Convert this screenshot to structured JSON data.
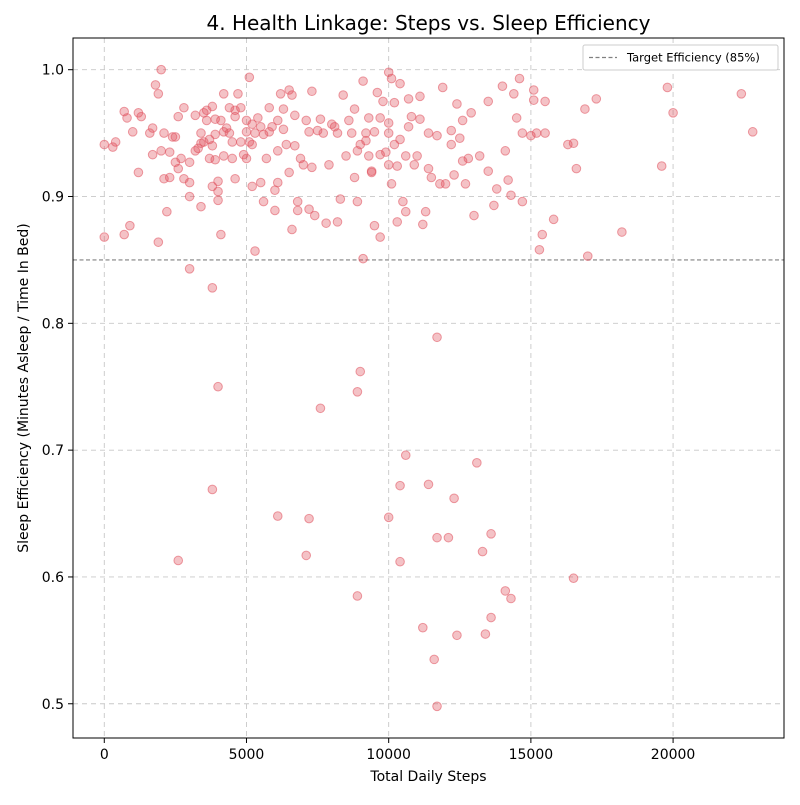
{
  "chart_data": {
    "type": "scatter",
    "title": "4. Health Linkage: Steps vs. Sleep Efficiency",
    "xlabel": "Total Daily Steps",
    "ylabel": "Sleep Efficiency (Minutes Asleep / Time In Bed)",
    "xlim": [
      -1100,
      23900
    ],
    "ylim": [
      0.473,
      1.025
    ],
    "x_ticks": [
      0,
      5000,
      10000,
      15000,
      20000
    ],
    "x_tick_labels": [
      "0",
      "5000",
      "10000",
      "15000",
      "20000"
    ],
    "y_ticks": [
      0.5,
      0.6,
      0.7,
      0.8,
      0.9,
      1.0
    ],
    "y_tick_labels": [
      "0.5",
      "0.6",
      "0.7",
      "0.8",
      "0.9",
      "1.0"
    ],
    "grid": true,
    "legend": {
      "placement": "top-right",
      "entries": [
        {
          "label": "Target Efficiency (85%)",
          "style": "dashed-line",
          "color": "#808080"
        }
      ]
    },
    "reference_line": {
      "y": 0.85,
      "label": "Target Efficiency (85%)",
      "color": "#808080",
      "style": "dashed"
    },
    "point_color": "#e0505c",
    "series": [
      {
        "points": [
          [
            0,
            0.941
          ],
          [
            0,
            0.868
          ],
          [
            300,
            0.939
          ],
          [
            400,
            0.943
          ],
          [
            700,
            0.967
          ],
          [
            700,
            0.87
          ],
          [
            800,
            0.962
          ],
          [
            900,
            0.877
          ],
          [
            1000,
            0.951
          ],
          [
            1200,
            0.919
          ],
          [
            1200,
            0.966
          ],
          [
            1300,
            0.963
          ],
          [
            1600,
            0.95
          ],
          [
            1700,
            0.954
          ],
          [
            1700,
            0.933
          ],
          [
            1800,
            0.988
          ],
          [
            1900,
            0.981
          ],
          [
            1900,
            0.864
          ],
          [
            2000,
            1.0
          ],
          [
            2000,
            0.936
          ],
          [
            2100,
            0.95
          ],
          [
            2100,
            0.914
          ],
          [
            2200,
            0.888
          ],
          [
            2300,
            0.935
          ],
          [
            2300,
            0.915
          ],
          [
            2400,
            0.947
          ],
          [
            2500,
            0.947
          ],
          [
            2500,
            0.927
          ],
          [
            2600,
            0.963
          ],
          [
            2600,
            0.922
          ],
          [
            2600,
            0.613
          ],
          [
            2700,
            0.93
          ],
          [
            2800,
            0.97
          ],
          [
            2800,
            0.914
          ],
          [
            3000,
            0.927
          ],
          [
            3000,
            0.911
          ],
          [
            3000,
            0.9
          ],
          [
            3000,
            0.843
          ],
          [
            3200,
            0.964
          ],
          [
            3200,
            0.936
          ],
          [
            3300,
            0.938
          ],
          [
            3400,
            0.95
          ],
          [
            3400,
            0.942
          ],
          [
            3400,
            0.892
          ],
          [
            3500,
            0.966
          ],
          [
            3500,
            0.943
          ],
          [
            3600,
            0.968
          ],
          [
            3600,
            0.96
          ],
          [
            3700,
            0.945
          ],
          [
            3700,
            0.93
          ],
          [
            3800,
            0.971
          ],
          [
            3800,
            0.908
          ],
          [
            3800,
            0.94
          ],
          [
            3800,
            0.828
          ],
          [
            3800,
            0.669
          ],
          [
            3900,
            0.961
          ],
          [
            3900,
            0.949
          ],
          [
            3900,
            0.929
          ],
          [
            4000,
            0.912
          ],
          [
            4000,
            0.897
          ],
          [
            4000,
            0.904
          ],
          [
            4000,
            0.75
          ],
          [
            4100,
            0.96
          ],
          [
            4100,
            0.87
          ],
          [
            4200,
            0.981
          ],
          [
            4200,
            0.951
          ],
          [
            4200,
            0.932
          ],
          [
            4300,
            0.954
          ],
          [
            4400,
            0.97
          ],
          [
            4400,
            0.95
          ],
          [
            4500,
            0.943
          ],
          [
            4500,
            0.93
          ],
          [
            4600,
            0.968
          ],
          [
            4600,
            0.963
          ],
          [
            4600,
            0.914
          ],
          [
            4700,
            0.981
          ],
          [
            4800,
            0.97
          ],
          [
            4800,
            0.943
          ],
          [
            4900,
            0.933
          ],
          [
            5000,
            0.96
          ],
          [
            5000,
            0.951
          ],
          [
            5000,
            0.93
          ],
          [
            5100,
            0.994
          ],
          [
            5100,
            0.943
          ],
          [
            5200,
            0.957
          ],
          [
            5200,
            0.941
          ],
          [
            5200,
            0.908
          ],
          [
            5300,
            0.95
          ],
          [
            5300,
            0.857
          ],
          [
            5400,
            0.962
          ],
          [
            5500,
            0.955
          ],
          [
            5500,
            0.911
          ],
          [
            5600,
            0.949
          ],
          [
            5600,
            0.896
          ],
          [
            5700,
            0.93
          ],
          [
            5800,
            0.97
          ],
          [
            5800,
            0.951
          ],
          [
            5900,
            0.955
          ],
          [
            6000,
            0.905
          ],
          [
            6000,
            0.889
          ],
          [
            6100,
            0.96
          ],
          [
            6100,
            0.936
          ],
          [
            6100,
            0.911
          ],
          [
            6100,
            0.648
          ],
          [
            6200,
            0.981
          ],
          [
            6300,
            0.969
          ],
          [
            6300,
            0.953
          ],
          [
            6400,
            0.941
          ],
          [
            6500,
            0.984
          ],
          [
            6500,
            0.919
          ],
          [
            6600,
            0.98
          ],
          [
            6600,
            0.874
          ],
          [
            6700,
            0.964
          ],
          [
            6700,
            0.94
          ],
          [
            6800,
            0.896
          ],
          [
            6800,
            0.889
          ],
          [
            6900,
            0.93
          ],
          [
            7000,
            0.925
          ],
          [
            7100,
            0.96
          ],
          [
            7100,
            0.617
          ],
          [
            7200,
            0.951
          ],
          [
            7200,
            0.89
          ],
          [
            7200,
            0.646
          ],
          [
            7300,
            0.983
          ],
          [
            7300,
            0.923
          ],
          [
            7400,
            0.885
          ],
          [
            7500,
            0.952
          ],
          [
            7600,
            0.961
          ],
          [
            7600,
            0.733
          ],
          [
            7700,
            0.95
          ],
          [
            7800,
            0.879
          ],
          [
            7900,
            0.925
          ],
          [
            8000,
            0.957
          ],
          [
            8100,
            0.955
          ],
          [
            8200,
            0.95
          ],
          [
            8200,
            0.88
          ],
          [
            8300,
            0.898
          ],
          [
            8400,
            0.98
          ],
          [
            8500,
            0.932
          ],
          [
            8600,
            0.96
          ],
          [
            8700,
            0.95
          ],
          [
            8800,
            0.969
          ],
          [
            8800,
            0.915
          ],
          [
            8900,
            0.936
          ],
          [
            8900,
            0.896
          ],
          [
            8900,
            0.746
          ],
          [
            8900,
            0.585
          ],
          [
            9000,
            0.941
          ],
          [
            9000,
            0.762
          ],
          [
            9100,
            0.851
          ],
          [
            9100,
            0.991
          ],
          [
            9200,
            0.95
          ],
          [
            9200,
            0.944
          ],
          [
            9300,
            0.962
          ],
          [
            9300,
            0.932
          ],
          [
            9400,
            0.919
          ],
          [
            9400,
            0.92
          ],
          [
            9500,
            0.951
          ],
          [
            9500,
            0.877
          ],
          [
            9600,
            0.982
          ],
          [
            9700,
            0.962
          ],
          [
            9700,
            0.933
          ],
          [
            9700,
            0.868
          ],
          [
            9800,
            0.975
          ],
          [
            9900,
            0.935
          ],
          [
            10000,
            0.998
          ],
          [
            10000,
            0.958
          ],
          [
            10000,
            0.95
          ],
          [
            10000,
            0.925
          ],
          [
            10000,
            0.647
          ],
          [
            10100,
            0.993
          ],
          [
            10100,
            0.91
          ],
          [
            10200,
            0.974
          ],
          [
            10200,
            0.941
          ],
          [
            10300,
            0.924
          ],
          [
            10300,
            0.88
          ],
          [
            10400,
            0.989
          ],
          [
            10400,
            0.945
          ],
          [
            10400,
            0.672
          ],
          [
            10400,
            0.612
          ],
          [
            10500,
            0.896
          ],
          [
            10600,
            0.932
          ],
          [
            10600,
            0.888
          ],
          [
            10600,
            0.696
          ],
          [
            10700,
            0.977
          ],
          [
            10700,
            0.955
          ],
          [
            10800,
            0.963
          ],
          [
            10900,
            0.925
          ],
          [
            11000,
            0.932
          ],
          [
            11100,
            0.979
          ],
          [
            11100,
            0.961
          ],
          [
            11200,
            0.878
          ],
          [
            11200,
            0.56
          ],
          [
            11300,
            0.888
          ],
          [
            11400,
            0.95
          ],
          [
            11400,
            0.922
          ],
          [
            11400,
            0.673
          ],
          [
            11500,
            0.915
          ],
          [
            11600,
            0.535
          ],
          [
            11700,
            0.948
          ],
          [
            11700,
            0.789
          ],
          [
            11700,
            0.631
          ],
          [
            11700,
            0.498
          ],
          [
            11800,
            0.91
          ],
          [
            11900,
            0.986
          ],
          [
            12000,
            0.91
          ],
          [
            12100,
            0.631
          ],
          [
            12200,
            0.952
          ],
          [
            12200,
            0.941
          ],
          [
            12300,
            0.917
          ],
          [
            12300,
            0.662
          ],
          [
            12400,
            0.973
          ],
          [
            12400,
            0.554
          ],
          [
            12500,
            0.946
          ],
          [
            12600,
            0.96
          ],
          [
            12600,
            0.928
          ],
          [
            12700,
            0.91
          ],
          [
            12800,
            0.93
          ],
          [
            12900,
            0.966
          ],
          [
            13000,
            0.885
          ],
          [
            13100,
            0.69
          ],
          [
            13200,
            0.932
          ],
          [
            13300,
            0.62
          ],
          [
            13400,
            0.555
          ],
          [
            13500,
            0.975
          ],
          [
            13500,
            0.92
          ],
          [
            13600,
            0.634
          ],
          [
            13600,
            0.568
          ],
          [
            13700,
            0.893
          ],
          [
            13800,
            0.906
          ],
          [
            14000,
            0.987
          ],
          [
            14100,
            0.936
          ],
          [
            14100,
            0.589
          ],
          [
            14200,
            0.913
          ],
          [
            14300,
            0.901
          ],
          [
            14300,
            0.583
          ],
          [
            14400,
            0.981
          ],
          [
            14500,
            0.962
          ],
          [
            14600,
            0.993
          ],
          [
            14700,
            0.95
          ],
          [
            14700,
            0.896
          ],
          [
            15000,
            0.948
          ],
          [
            15100,
            0.984
          ],
          [
            15100,
            0.976
          ],
          [
            15200,
            0.95
          ],
          [
            15300,
            0.858
          ],
          [
            15400,
            0.87
          ],
          [
            15500,
            0.975
          ],
          [
            15500,
            0.95
          ],
          [
            15800,
            0.882
          ],
          [
            16300,
            0.941
          ],
          [
            16500,
            0.942
          ],
          [
            16500,
            0.599
          ],
          [
            16600,
            0.922
          ],
          [
            16900,
            0.969
          ],
          [
            17000,
            0.853
          ],
          [
            17300,
            0.977
          ],
          [
            18200,
            0.872
          ],
          [
            19600,
            0.924
          ],
          [
            19800,
            0.986
          ],
          [
            20000,
            0.966
          ],
          [
            22400,
            0.981
          ],
          [
            22800,
            0.951
          ]
        ]
      }
    ]
  }
}
